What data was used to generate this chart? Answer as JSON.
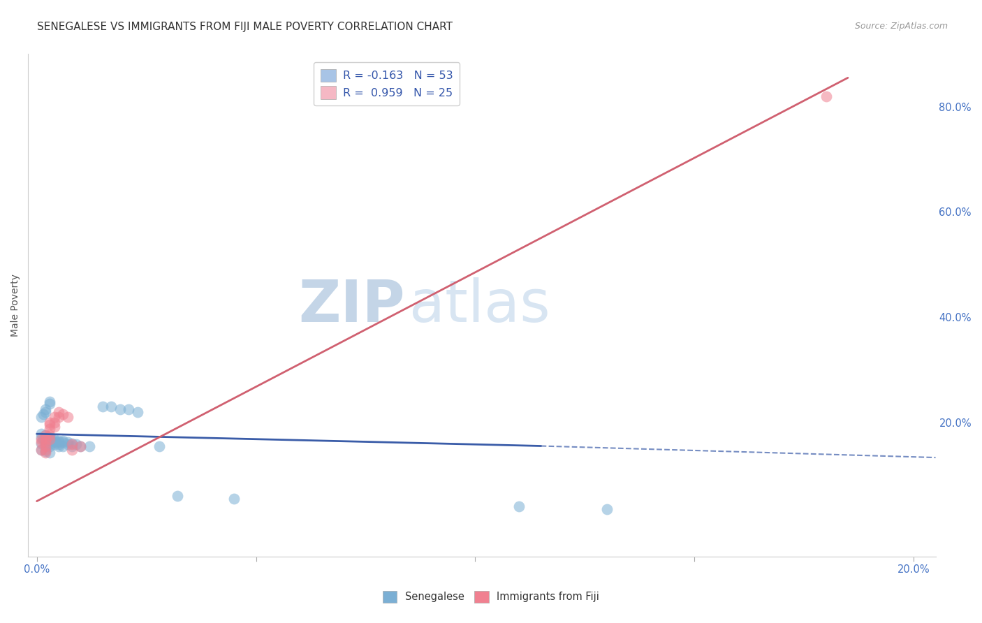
{
  "title": "SENEGALESE VS IMMIGRANTS FROM FIJI MALE POVERTY CORRELATION CHART",
  "source": "Source: ZipAtlas.com",
  "ylabel": "Male Poverty",
  "ytick_labels": [
    "80.0%",
    "60.0%",
    "40.0%",
    "20.0%"
  ],
  "ytick_values": [
    0.8,
    0.6,
    0.4,
    0.2
  ],
  "xlim": [
    -0.002,
    0.205
  ],
  "ylim": [
    -0.055,
    0.9
  ],
  "legend_entries": [
    {
      "label": "R = -0.163   N = 53",
      "facecolor": "#a8c4e6"
    },
    {
      "label": "R =  0.959   N = 25",
      "facecolor": "#f5b8c4"
    }
  ],
  "legend_label_senegalese": "Senegalese",
  "legend_label_fiji": "Immigrants from Fiji",
  "watermark_zip": "ZIP",
  "watermark_atlas": "atlas",
  "senegalese_scatter": [
    [
      0.001,
      0.178
    ],
    [
      0.001,
      0.172
    ],
    [
      0.0015,
      0.168
    ],
    [
      0.001,
      0.16
    ],
    [
      0.002,
      0.175
    ],
    [
      0.002,
      0.17
    ],
    [
      0.002,
      0.165
    ],
    [
      0.002,
      0.162
    ],
    [
      0.002,
      0.158
    ],
    [
      0.0025,
      0.173
    ],
    [
      0.003,
      0.171
    ],
    [
      0.003,
      0.168
    ],
    [
      0.003,
      0.165
    ],
    [
      0.003,
      0.162
    ],
    [
      0.003,
      0.158
    ],
    [
      0.003,
      0.155
    ],
    [
      0.004,
      0.168
    ],
    [
      0.004,
      0.165
    ],
    [
      0.004,
      0.162
    ],
    [
      0.004,
      0.158
    ],
    [
      0.005,
      0.165
    ],
    [
      0.005,
      0.162
    ],
    [
      0.005,
      0.158
    ],
    [
      0.005,
      0.155
    ],
    [
      0.006,
      0.165
    ],
    [
      0.006,
      0.162
    ],
    [
      0.006,
      0.155
    ],
    [
      0.007,
      0.162
    ],
    [
      0.007,
      0.158
    ],
    [
      0.008,
      0.16
    ],
    [
      0.008,
      0.155
    ],
    [
      0.001,
      0.21
    ],
    [
      0.0015,
      0.215
    ],
    [
      0.002,
      0.225
    ],
    [
      0.002,
      0.22
    ],
    [
      0.003,
      0.24
    ],
    [
      0.003,
      0.235
    ],
    [
      0.009,
      0.158
    ],
    [
      0.01,
      0.155
    ],
    [
      0.012,
      0.155
    ],
    [
      0.015,
      0.23
    ],
    [
      0.017,
      0.23
    ],
    [
      0.019,
      0.225
    ],
    [
      0.021,
      0.225
    ],
    [
      0.023,
      0.22
    ],
    [
      0.028,
      0.155
    ],
    [
      0.032,
      0.06
    ],
    [
      0.045,
      0.055
    ],
    [
      0.11,
      0.04
    ],
    [
      0.13,
      0.035
    ],
    [
      0.001,
      0.148
    ],
    [
      0.002,
      0.145
    ],
    [
      0.003,
      0.142
    ]
  ],
  "fiji_scatter": [
    [
      0.001,
      0.168
    ],
    [
      0.001,
      0.162
    ],
    [
      0.001,
      0.148
    ],
    [
      0.002,
      0.175
    ],
    [
      0.002,
      0.168
    ],
    [
      0.002,
      0.162
    ],
    [
      0.002,
      0.155
    ],
    [
      0.002,
      0.148
    ],
    [
      0.002,
      0.142
    ],
    [
      0.003,
      0.2
    ],
    [
      0.003,
      0.195
    ],
    [
      0.003,
      0.188
    ],
    [
      0.003,
      0.175
    ],
    [
      0.003,
      0.168
    ],
    [
      0.004,
      0.21
    ],
    [
      0.004,
      0.2
    ],
    [
      0.004,
      0.192
    ],
    [
      0.005,
      0.22
    ],
    [
      0.005,
      0.21
    ],
    [
      0.006,
      0.215
    ],
    [
      0.007,
      0.21
    ],
    [
      0.008,
      0.158
    ],
    [
      0.008,
      0.148
    ],
    [
      0.01,
      0.155
    ],
    [
      0.18,
      0.82
    ]
  ],
  "blue_line_solid": {
    "x0": 0.0,
    "y0": 0.178,
    "x1": 0.115,
    "y1": 0.155
  },
  "blue_line_dashed": {
    "x0": 0.115,
    "y0": 0.155,
    "x1": 0.205,
    "y1": 0.133
  },
  "pink_line_solid": {
    "x0": 0.0,
    "y0": 0.05,
    "x1": 0.185,
    "y1": 0.855
  },
  "scatter_color_blue": "#7bafd4",
  "scatter_color_pink": "#f08090",
  "line_color_blue": "#3a5ca8",
  "line_color_pink": "#d06070",
  "background_color": "#ffffff",
  "grid_color": "#cccccc",
  "title_fontsize": 11,
  "axis_label_fontsize": 10,
  "tick_fontsize": 10.5,
  "watermark_color": "#ccd8ea",
  "title_color": "#333333",
  "source_color": "#999999"
}
